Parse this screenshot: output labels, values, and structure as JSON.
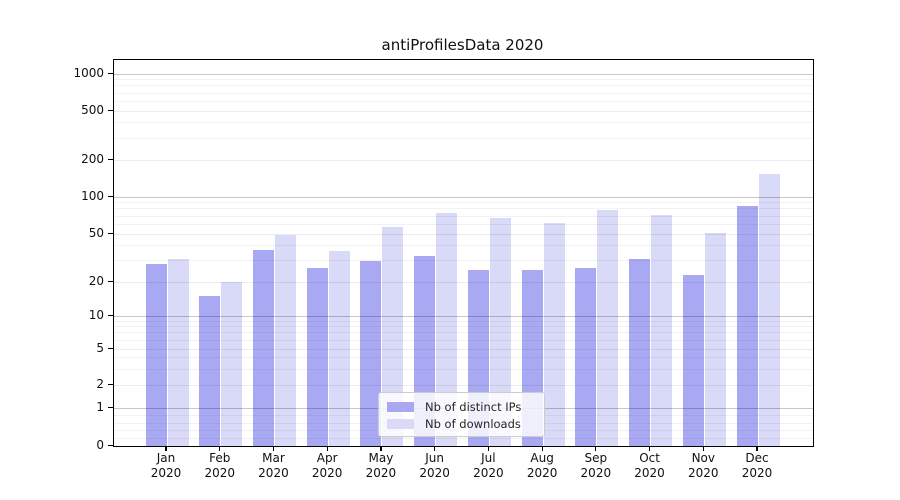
{
  "figure": {
    "title": "antiProfilesData 2020"
  },
  "chart_data": {
    "type": "bar",
    "title": "antiProfilesData 2020",
    "xlabel": "",
    "ylabel": "",
    "yscale": "symlog-asinh",
    "grid": true,
    "legend_position": "lower center",
    "categories": [
      "Jan",
      "Feb",
      "Mar",
      "Apr",
      "May",
      "Jun",
      "Jul",
      "Aug",
      "Sep",
      "Oct",
      "Nov",
      "Dec"
    ],
    "category_year": "2020",
    "series": [
      {
        "name": "Nb of distinct IPs",
        "color": "#a9a9f3",
        "values": [
          28,
          15,
          37,
          26,
          30,
          33,
          25,
          25,
          26,
          31,
          23,
          84
        ]
      },
      {
        "name": "Nb of downloads",
        "color": "#d9d9f8",
        "values": [
          31,
          20,
          49,
          36,
          57,
          74,
          68,
          61,
          79,
          72,
          51,
          155
        ]
      }
    ],
    "ytick_values": [
      0,
      1,
      2,
      5,
      10,
      20,
      50,
      100,
      200,
      500,
      1000
    ],
    "ytick_labels": [
      "0",
      "1",
      "2",
      "5",
      "10",
      "20",
      "50",
      "100",
      "200",
      "500",
      "1000"
    ],
    "ylim": [
      0,
      1300
    ],
    "grid_major_values": [
      1,
      10,
      100,
      1000
    ],
    "grid_mid_values": [
      2,
      5,
      20,
      50,
      200,
      500
    ],
    "grid_minor_values": [
      0.2,
      0.4,
      0.6,
      0.8,
      3,
      4,
      6,
      7,
      8,
      9,
      30,
      40,
      60,
      70,
      80,
      90,
      300,
      400,
      600,
      700,
      800,
      900
    ]
  }
}
